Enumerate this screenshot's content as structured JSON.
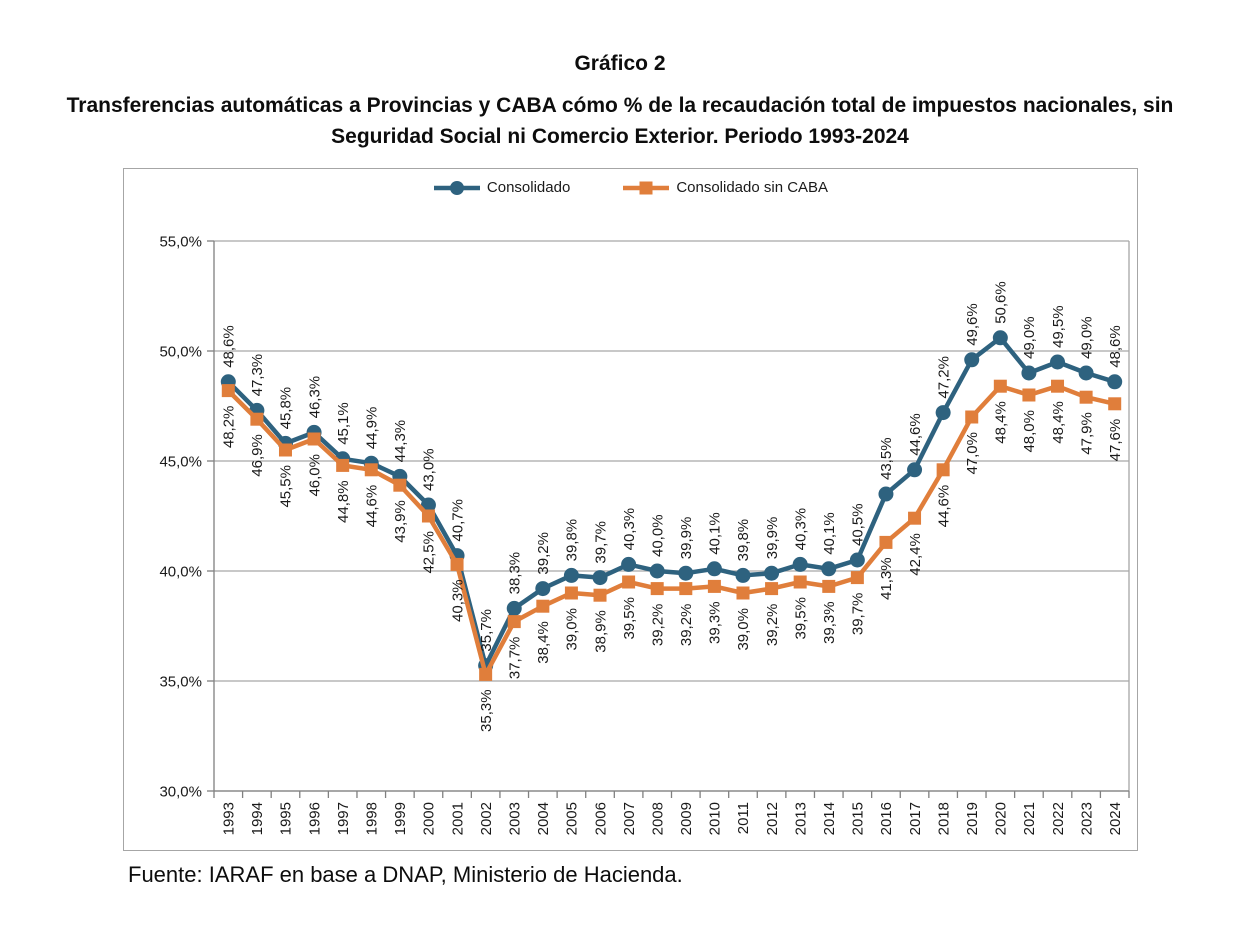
{
  "page": {
    "title": "Gráfico 2",
    "subtitle": "Transferencias automáticas a Provincias y CABA cómo % de la recaudación total de impuestos nacionales, sin Seguridad Social ni Comercio Exterior. Periodo 1993-2024",
    "source": "Fuente: IARAF en base a DNAP, Ministerio de Hacienda."
  },
  "chart_data": {
    "type": "line",
    "title": "Gráfico 2",
    "categories": [
      "1993",
      "1994",
      "1995",
      "1996",
      "1997",
      "1998",
      "1999",
      "2000",
      "2001",
      "2002",
      "2003",
      "2004",
      "2005",
      "2006",
      "2007",
      "2008",
      "2009",
      "2010",
      "2011",
      "2012",
      "2013",
      "2014",
      "2015",
      "2016",
      "2017",
      "2018",
      "2019",
      "2020",
      "2021",
      "2022",
      "2023",
      "2024"
    ],
    "series": [
      {
        "name": "Consolidado",
        "marker": "circle",
        "color": "#2E627F",
        "values": [
          48.6,
          47.3,
          45.8,
          46.3,
          45.1,
          44.9,
          44.3,
          43.0,
          40.7,
          35.7,
          38.3,
          39.2,
          39.8,
          39.7,
          40.3,
          40.0,
          39.9,
          40.1,
          39.8,
          39.9,
          40.3,
          40.1,
          40.5,
          43.5,
          44.6,
          47.2,
          49.6,
          50.6,
          49.0,
          49.5,
          49.0,
          48.6
        ],
        "labels": [
          "48,6%",
          "47,3%",
          "45,8%",
          "46,3%",
          "45,1%",
          "44,9%",
          "44,3%",
          "43,0%",
          "40,7%",
          "35,7%",
          "38,3%",
          "39,2%",
          "39,8%",
          "39,7%",
          "40,3%",
          "40,0%",
          "39,9%",
          "40,1%",
          "39,8%",
          "39,9%",
          "40,3%",
          "40,1%",
          "40,5%",
          "43,5%",
          "44,6%",
          "47,2%",
          "49,6%",
          "50,6%",
          "49,0%",
          "49,5%",
          "49,0%",
          "48,6%"
        ],
        "label_position": "above"
      },
      {
        "name": "Consolidado sin CABA",
        "marker": "square",
        "color": "#E07E3B",
        "values": [
          48.2,
          46.9,
          45.5,
          46.0,
          44.8,
          44.6,
          43.9,
          42.5,
          40.3,
          35.3,
          37.7,
          38.4,
          39.0,
          38.9,
          39.5,
          39.2,
          39.2,
          39.3,
          39.0,
          39.2,
          39.5,
          39.3,
          39.7,
          41.3,
          42.4,
          44.6,
          47.0,
          48.4,
          48.0,
          48.4,
          47.9,
          47.6
        ],
        "labels": [
          "48,2%",
          "46,9%",
          "45,5%",
          "46,0%",
          "44,8%",
          "44,6%",
          "43,9%",
          "42,5%",
          "40,3%",
          "35,3%",
          "37,7%",
          "38,4%",
          "39,0%",
          "38,9%",
          "39,5%",
          "39,2%",
          "39,2%",
          "39,3%",
          "39,0%",
          "39,2%",
          "39,5%",
          "39,3%",
          "39,7%",
          "41,3%",
          "42,4%",
          "44,6%",
          "47,0%",
          "48,4%",
          "48,0%",
          "48,4%",
          "47,9%",
          "47,6%"
        ],
        "label_position": "below"
      }
    ],
    "y_axis": {
      "min": 30,
      "max": 55,
      "step": 5,
      "tick_labels": [
        "30,0%",
        "35,0%",
        "40,0%",
        "45,0%",
        "50,0%",
        "55,0%"
      ]
    },
    "x_axis": {
      "label_rotation": -90
    },
    "grid": true,
    "legend_position": "top-center",
    "style_colors": {
      "gridline": "#a6a6a6",
      "axis": "#808080",
      "text": "#1a1a1a"
    }
  }
}
